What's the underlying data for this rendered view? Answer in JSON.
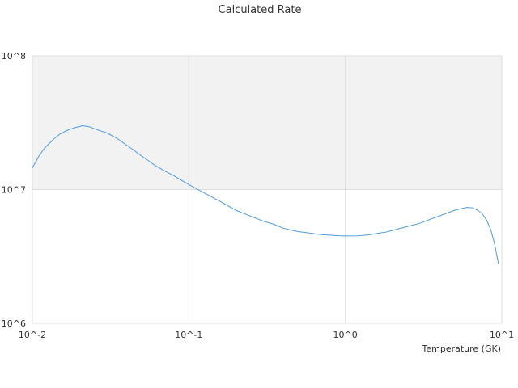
{
  "chart_data": {
    "type": "line",
    "title": "Calculated Rate",
    "xlabel": "Temperature (GK)",
    "ylabel": "",
    "x_scale": "log",
    "y_scale": "log",
    "xlim": [
      0.01,
      10
    ],
    "ylim": [
      1000000,
      100000000
    ],
    "x_ticks": [
      "10^-2",
      "10^-1",
      "10^0",
      "10^1"
    ],
    "y_ticks": [
      "10^6",
      "10^7",
      "10^8"
    ],
    "grid": true,
    "legend": "none",
    "shaded_band": {
      "y_from": 10000000,
      "y_to": 100000000,
      "color": "#f2f2f2"
    },
    "colors": {
      "line": "#4d9be0",
      "grid": "#dddddd",
      "axis": "#cccccc"
    },
    "series": [
      {
        "x": [
          0.01,
          0.011,
          0.012,
          0.0135,
          0.015,
          0.017,
          0.019,
          0.021,
          0.023,
          0.026,
          0.03,
          0.035,
          0.04,
          0.045,
          0.05,
          0.055,
          0.06,
          0.07,
          0.08,
          0.09,
          0.1,
          0.12,
          0.14,
          0.16,
          0.18,
          0.2,
          0.25,
          0.3,
          0.35,
          0.4,
          0.45,
          0.5,
          0.6,
          0.7,
          0.8,
          0.9,
          1.0,
          1.2,
          1.4,
          1.6,
          1.8,
          2.0,
          2.5,
          3.0,
          3.5,
          4.0,
          4.5,
          5.0,
          5.5,
          6.0,
          6.5,
          7.0,
          7.5,
          8.0,
          8.5,
          9.0,
          9.5
        ],
        "y": [
          14500000,
          17800000,
          20500000,
          23500000,
          26000000,
          28000000,
          29200000,
          30000000,
          29500000,
          28000000,
          26500000,
          24000000,
          21500000,
          19500000,
          17800000,
          16500000,
          15300000,
          13800000,
          12700000,
          11700000,
          10900000,
          9700000,
          8800000,
          8100000,
          7500000,
          7000000,
          6300000,
          5800000,
          5500000,
          5150000,
          4980000,
          4850000,
          4720000,
          4600000,
          4560000,
          4520000,
          4500000,
          4510000,
          4580000,
          4700000,
          4800000,
          4950000,
          5300000,
          5600000,
          6000000,
          6350000,
          6700000,
          7000000,
          7200000,
          7350000,
          7300000,
          7000000,
          6600000,
          5900000,
          5000000,
          3900000,
          2800000
        ]
      }
    ]
  }
}
